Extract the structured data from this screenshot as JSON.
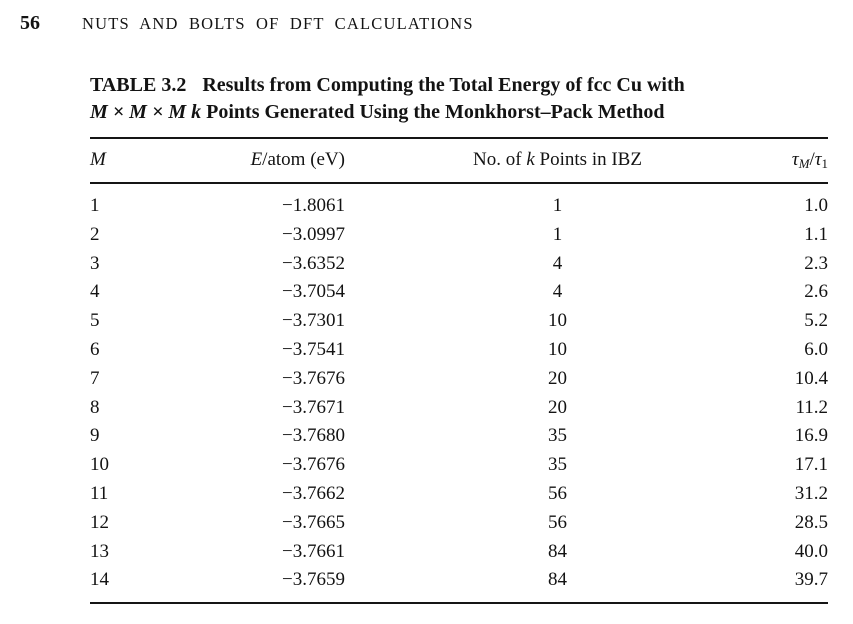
{
  "page": {
    "page_number": "56",
    "running_head": "NUTS AND BOLTS OF DFT CALCULATIONS"
  },
  "table": {
    "caption": {
      "label": "TABLE 3.2",
      "line1": "Results from Computing the Total Energy of fcc Cu with",
      "line2_math": "M × M × M k",
      "line2_rest": " Points Generated Using the Monkhorst–Pack Method"
    },
    "columns": {
      "m": "M",
      "e_italic": "E",
      "e_rest": "/atom (eV)",
      "k_pre": "No. of ",
      "k_italic": "k",
      "k_post": " Points in IBZ",
      "tau": "τ",
      "tau_sub_m": "M",
      "tau_slash": "/",
      "tau_sub_1": "1"
    },
    "rows": [
      [
        "1",
        "−1.8061",
        "1",
        "1.0"
      ],
      [
        "2",
        "−3.0997",
        "1",
        "1.1"
      ],
      [
        "3",
        "−3.6352",
        "4",
        "2.3"
      ],
      [
        "4",
        "−3.7054",
        "4",
        "2.6"
      ],
      [
        "5",
        "−3.7301",
        "10",
        "5.2"
      ],
      [
        "6",
        "−3.7541",
        "10",
        "6.0"
      ],
      [
        "7",
        "−3.7676",
        "20",
        "10.4"
      ],
      [
        "8",
        "−3.7671",
        "20",
        "11.2"
      ],
      [
        "9",
        "−3.7680",
        "35",
        "16.9"
      ],
      [
        "10",
        "−3.7676",
        "35",
        "17.1"
      ],
      [
        "11",
        "−3.7662",
        "56",
        "31.2"
      ],
      [
        "12",
        "−3.7665",
        "56",
        "28.5"
      ],
      [
        "13",
        "−3.7661",
        "84",
        "40.0"
      ],
      [
        "14",
        "−3.7659",
        "84",
        "39.7"
      ]
    ]
  }
}
